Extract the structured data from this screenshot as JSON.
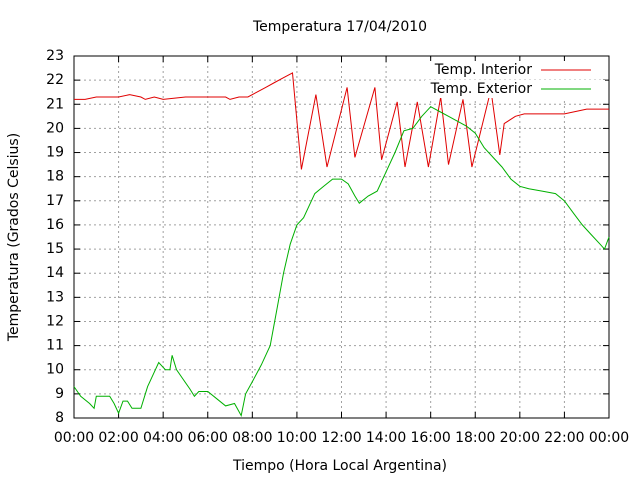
{
  "chart_data": {
    "type": "line",
    "title": "Temperatura 17/04/2010",
    "x_label": "Tiempo (Hora Local Argentina)",
    "y_label": "Temperatura (Grados Celsius)",
    "xlim": [
      0,
      24
    ],
    "ylim": [
      8,
      23
    ],
    "grid": true,
    "legend": "top-right",
    "xticks": [
      {
        "value": 0,
        "label": "00:00"
      },
      {
        "value": 2,
        "label": "02:00"
      },
      {
        "value": 4,
        "label": "04:00"
      },
      {
        "value": 6,
        "label": "06:00"
      },
      {
        "value": 8,
        "label": "08:00"
      },
      {
        "value": 10,
        "label": "10:00"
      },
      {
        "value": 12,
        "label": "12:00"
      },
      {
        "value": 14,
        "label": "14:00"
      },
      {
        "value": 16,
        "label": "16:00"
      },
      {
        "value": 18,
        "label": "18:00"
      },
      {
        "value": 20,
        "label": "20:00"
      },
      {
        "value": 22,
        "label": "22:00"
      },
      {
        "value": 24,
        "label": "00:00"
      }
    ],
    "yticks": [
      8,
      9,
      10,
      11,
      12,
      13,
      14,
      15,
      16,
      17,
      18,
      19,
      20,
      21,
      22,
      23
    ],
    "series": [
      {
        "name": "Temp. Interior",
        "color": "#e00000",
        "x": [
          0,
          0.5,
          1,
          2,
          2.5,
          3,
          3.2,
          3.6,
          4,
          5,
          6,
          6.8,
          7,
          7.4,
          7.8,
          8.2,
          8.6,
          9,
          9.4,
          9.8,
          10.2,
          10.85,
          11.35,
          12.25,
          12.6,
          13.5,
          13.8,
          14.5,
          14.85,
          15.4,
          15.9,
          16.45,
          16.8,
          17.45,
          17.85,
          18.7,
          19.1,
          19.3,
          19.8,
          20.2,
          21,
          22,
          22.5,
          23,
          24
        ],
        "values": [
          21.2,
          21.2,
          21.3,
          21.3,
          21.4,
          21.3,
          21.2,
          21.3,
          21.2,
          21.3,
          21.3,
          21.3,
          21.2,
          21.3,
          21.3,
          21.5,
          21.7,
          21.9,
          22.1,
          22.3,
          18.3,
          21.4,
          18.4,
          21.7,
          18.8,
          21.7,
          18.7,
          21.1,
          18.4,
          21.1,
          18.4,
          21.3,
          18.5,
          21.2,
          18.4,
          21.6,
          18.9,
          20.2,
          20.5,
          20.6,
          20.6,
          20.6,
          20.7,
          20.8,
          20.8
        ]
      },
      {
        "name": "Temp. Exterior",
        "color": "#00b000",
        "x": [
          0,
          0.3,
          0.7,
          0.9,
          1.0,
          1.6,
          1.8,
          2.0,
          2.2,
          2.4,
          2.6,
          3.0,
          3.3,
          3.6,
          3.8,
          4.1,
          4.3,
          4.4,
          4.6,
          4.9,
          5.2,
          5.4,
          5.6,
          6.0,
          6.4,
          6.8,
          7.2,
          7.5,
          7.7,
          8.0,
          8.4,
          8.8,
          9.1,
          9.4,
          9.7,
          10.0,
          10.3,
          10.8,
          11.2,
          11.6,
          12.0,
          12.3,
          12.6,
          12.8,
          13.2,
          13.6,
          14.0,
          14.4,
          14.8,
          15.2,
          15.6,
          16.0,
          16.4,
          16.8,
          17.2,
          17.6,
          18.0,
          18.4,
          18.8,
          19.2,
          19.6,
          20.0,
          20.4,
          21.0,
          21.6,
          22.0,
          22.4,
          22.8,
          23.2,
          23.6,
          23.8,
          24.0
        ],
        "values": [
          9.3,
          8.9,
          8.6,
          8.4,
          8.9,
          8.9,
          8.6,
          8.2,
          8.7,
          8.7,
          8.4,
          8.4,
          9.3,
          9.9,
          10.3,
          10.0,
          10.0,
          10.6,
          10.0,
          9.6,
          9.2,
          8.9,
          9.1,
          9.1,
          8.8,
          8.5,
          8.6,
          8.1,
          9.0,
          9.5,
          10.2,
          11.0,
          12.5,
          14.0,
          15.2,
          16.0,
          16.3,
          17.3,
          17.6,
          17.9,
          17.9,
          17.7,
          17.2,
          16.9,
          17.2,
          17.4,
          18.2,
          19.0,
          19.9,
          20.0,
          20.5,
          20.9,
          20.7,
          20.5,
          20.3,
          20.1,
          19.8,
          19.2,
          18.8,
          18.4,
          17.9,
          17.6,
          17.5,
          17.4,
          17.3,
          17.0,
          16.5,
          16.0,
          15.6,
          15.2,
          15.0,
          15.5
        ]
      }
    ]
  }
}
